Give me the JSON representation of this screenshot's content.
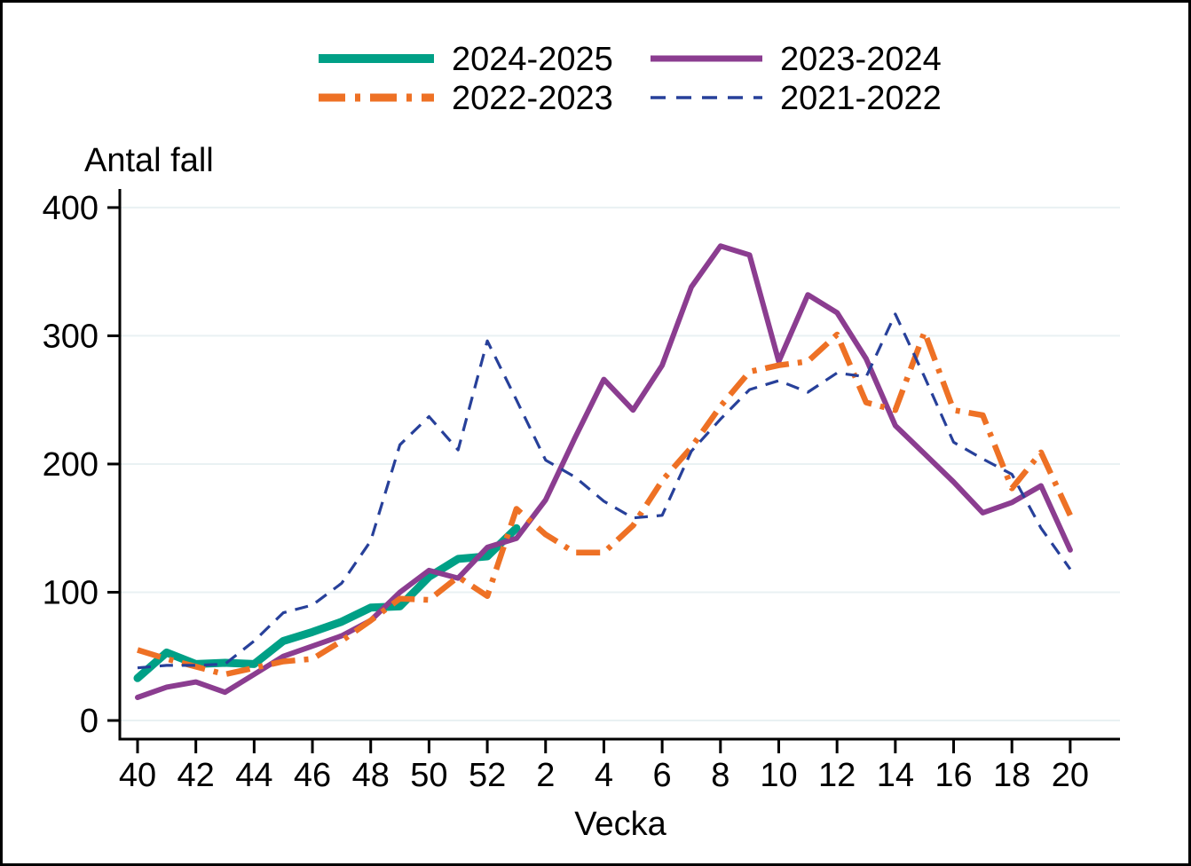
{
  "chart_data": {
    "type": "line",
    "title": "",
    "ylabel": "Antal fall",
    "xlabel": "Vecka",
    "x_categories": [
      "40",
      "41",
      "42",
      "43",
      "44",
      "45",
      "46",
      "47",
      "48",
      "49",
      "50",
      "51",
      "52",
      "1",
      "2",
      "3",
      "4",
      "5",
      "6",
      "7",
      "8",
      "9",
      "10",
      "11",
      "12",
      "13",
      "14",
      "15",
      "16",
      "17",
      "18",
      "19",
      "20"
    ],
    "x_tick_labels": [
      "40",
      "42",
      "44",
      "46",
      "48",
      "50",
      "52",
      "2",
      "4",
      "6",
      "8",
      "10",
      "12",
      "14",
      "16",
      "18",
      "20"
    ],
    "y_ticks": [
      0,
      100,
      200,
      300,
      400
    ],
    "ylim": [
      0,
      400
    ],
    "grid": "horizontal",
    "legend_position": "top-center",
    "series": [
      {
        "name": "2024-2025",
        "color": "#00a086",
        "style": "solid",
        "values": [
          33,
          53,
          44,
          45,
          44,
          62,
          69,
          77,
          88,
          89,
          112,
          126,
          128,
          150,
          null,
          null,
          null,
          null,
          null,
          null,
          null,
          null,
          null,
          null,
          null,
          null,
          null,
          null,
          null,
          null,
          null,
          null,
          null
        ]
      },
      {
        "name": "2023-2024",
        "color": "#8b3d90",
        "style": "solid",
        "values": [
          18,
          26,
          30,
          22,
          36,
          50,
          58,
          66,
          78,
          100,
          117,
          111,
          135,
          142,
          172,
          220,
          266,
          242,
          277,
          338,
          370,
          363,
          280,
          332,
          318,
          282,
          230,
          208,
          186,
          162,
          170,
          183,
          133
        ]
      },
      {
        "name": "2022-2023",
        "color": "#ee7125",
        "style": "dash-dot",
        "values": [
          55,
          48,
          42,
          36,
          41,
          46,
          48,
          62,
          78,
          95,
          94,
          112,
          97,
          165,
          145,
          131,
          131,
          152,
          187,
          213,
          245,
          272,
          277,
          280,
          301,
          248,
          242,
          303,
          242,
          238,
          181,
          209,
          160
        ]
      },
      {
        "name": "2021-2022",
        "color": "#27409a",
        "style": "dashed",
        "values": [
          41,
          43,
          43,
          44,
          62,
          84,
          90,
          107,
          140,
          215,
          237,
          211,
          296,
          250,
          203,
          190,
          171,
          158,
          160,
          210,
          235,
          258,
          265,
          256,
          271,
          268,
          317,
          268,
          217,
          204,
          192,
          150,
          118
        ]
      }
    ]
  },
  "colors": {
    "grid": "#e9f1f3",
    "axis": "#000000",
    "background": "#ffffff"
  }
}
